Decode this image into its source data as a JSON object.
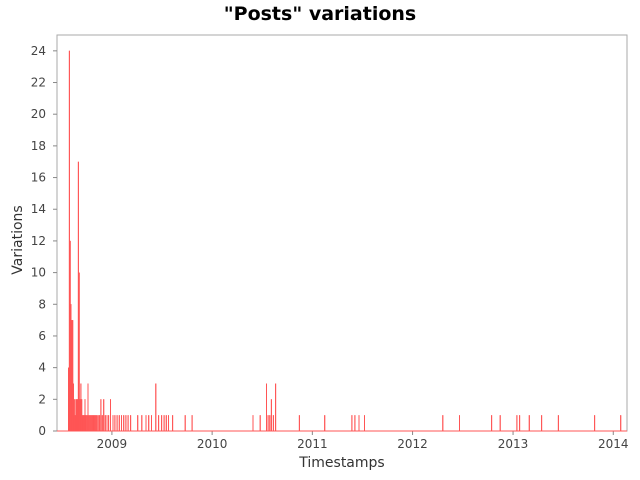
{
  "chart_data": {
    "type": "line",
    "title": "\"Posts\" variations",
    "xlabel": "Timestamps",
    "ylabel": "Variations",
    "ylim": [
      0,
      25
    ],
    "xlim": [
      "2008-06-15",
      "2014-02-20"
    ],
    "grid": false,
    "legend": "none",
    "line_color": "#ff5555",
    "x_ticks": [
      "2009",
      "2010",
      "2011",
      "2012",
      "2013",
      "2014"
    ],
    "y_ticks": [
      0,
      2,
      4,
      6,
      8,
      10,
      12,
      14,
      16,
      18,
      20,
      22,
      24
    ],
    "series": [
      {
        "x": [
          "2008-07-27",
          "2008-07-30",
          "2008-08-02",
          "2008-08-05",
          "2008-08-08",
          "2008-08-11",
          "2008-08-14",
          "2008-08-17",
          "2008-08-20",
          "2008-08-23",
          "2008-08-26",
          "2008-08-29",
          "2008-09-01",
          "2008-09-04",
          "2008-09-07",
          "2008-09-10",
          "2008-09-13",
          "2008-09-16",
          "2008-09-19",
          "2008-09-22",
          "2008-09-25",
          "2008-09-28",
          "2008-10-02",
          "2008-10-06",
          "2008-10-10",
          "2008-10-14",
          "2008-10-18",
          "2008-10-22",
          "2008-10-26",
          "2008-10-30",
          "2008-11-03",
          "2008-11-07",
          "2008-11-12",
          "2008-11-17",
          "2008-11-22",
          "2008-11-27",
          "2008-12-02",
          "2008-12-08",
          "2008-12-14",
          "2008-12-20",
          "2008-12-27",
          "2009-01-05",
          "2009-01-12",
          "2009-01-20",
          "2009-01-28",
          "2009-02-05",
          "2009-02-13",
          "2009-02-21",
          "2009-03-01",
          "2009-03-10",
          "2009-04-05",
          "2009-04-20",
          "2009-05-05",
          "2009-05-15",
          "2009-05-25",
          "2009-06-10",
          "2009-06-20",
          "2009-07-01",
          "2009-07-10",
          "2009-07-18",
          "2009-07-26",
          "2009-08-10",
          "2009-09-25",
          "2009-10-20",
          "2010-05-30",
          "2010-06-25",
          "2010-07-18",
          "2010-07-24",
          "2010-07-30",
          "2010-08-05",
          "2010-08-12",
          "2010-08-20",
          "2010-11-15",
          "2011-02-15",
          "2011-05-25",
          "2011-06-05",
          "2011-06-20",
          "2011-07-10",
          "2012-04-20",
          "2012-06-20",
          "2012-10-15",
          "2012-11-15",
          "2013-01-15",
          "2013-01-25",
          "2013-03-01",
          "2013-04-15",
          "2013-06-15",
          "2013-10-25",
          "2014-01-28"
        ],
        "values": [
          4,
          24,
          12,
          8,
          7,
          7,
          3,
          2,
          1,
          2,
          2,
          2,
          17,
          10,
          2,
          3,
          2,
          1,
          1,
          1,
          2,
          1,
          1,
          3,
          1,
          1,
          1,
          1,
          1,
          1,
          1,
          1,
          1,
          1,
          2,
          1,
          2,
          1,
          1,
          1,
          2,
          1,
          1,
          1,
          1,
          1,
          1,
          1,
          1,
          1,
          1,
          1,
          1,
          1,
          1,
          3,
          1,
          1,
          1,
          1,
          1,
          1,
          1,
          1,
          1,
          1,
          3,
          1,
          1,
          2,
          1,
          3,
          1,
          1,
          1,
          1,
          1,
          1,
          1,
          1,
          1,
          1,
          1,
          1,
          1,
          1,
          1,
          1,
          1
        ]
      }
    ]
  }
}
